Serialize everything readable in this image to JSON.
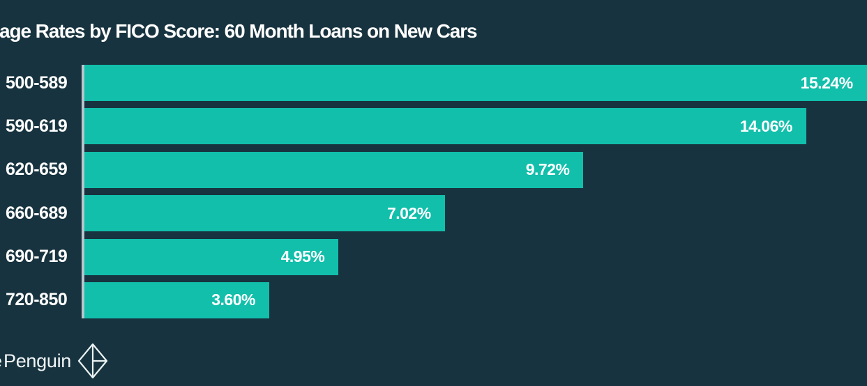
{
  "chart_data": {
    "type": "bar",
    "orientation": "horizontal",
    "title": "age Rates by FICO Score: 60 Month Loans on New Cars",
    "categories": [
      "500-589",
      "590-619",
      "620-659",
      "660-689",
      "690-719",
      "720-850"
    ],
    "values": [
      15.24,
      14.06,
      9.72,
      7.02,
      4.95,
      3.6
    ],
    "value_labels": [
      "15.24%",
      "14.06%",
      "9.72%",
      "7.02%",
      "4.95%",
      "3.60%"
    ],
    "xlabel": "",
    "ylabel": "",
    "xlim": [
      0,
      14.66
    ],
    "grid": false,
    "legend": "none",
    "value_label_position": "inside-end",
    "bar_color": "#11BFAB",
    "background_color": "#17333F",
    "axis_line_color": "#B7C6CD",
    "text_color": "#FFFFFF"
  },
  "footer": {
    "brand_fragment": "e",
    "brand_text": "Penguin",
    "logo_icon": "origami-penguin-diamond"
  }
}
